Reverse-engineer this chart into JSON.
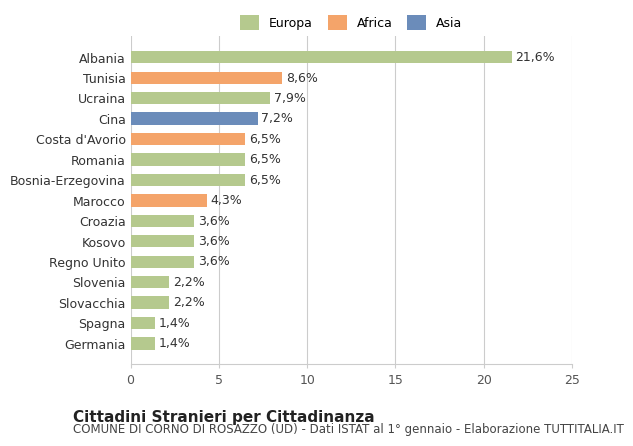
{
  "categories": [
    "Albania",
    "Tunisia",
    "Ucraina",
    "Cina",
    "Costa d'Avorio",
    "Romania",
    "Bosnia-Erzegovina",
    "Marocco",
    "Croazia",
    "Kosovo",
    "Regno Unito",
    "Slovenia",
    "Slovacchia",
    "Spagna",
    "Germania"
  ],
  "values": [
    21.6,
    8.6,
    7.9,
    7.2,
    6.5,
    6.5,
    6.5,
    4.3,
    3.6,
    3.6,
    3.6,
    2.2,
    2.2,
    1.4,
    1.4
  ],
  "labels": [
    "21,6%",
    "8,6%",
    "7,9%",
    "7,2%",
    "6,5%",
    "6,5%",
    "6,5%",
    "4,3%",
    "3,6%",
    "3,6%",
    "3,6%",
    "2,2%",
    "2,2%",
    "1,4%",
    "1,4%"
  ],
  "continents": [
    "Europa",
    "Africa",
    "Europa",
    "Asia",
    "Africa",
    "Europa",
    "Europa",
    "Africa",
    "Europa",
    "Europa",
    "Europa",
    "Europa",
    "Europa",
    "Europa",
    "Europa"
  ],
  "colors": {
    "Europa": "#b5c98e",
    "Africa": "#f4a46a",
    "Asia": "#6b8cba"
  },
  "legend_colors": {
    "Europa": "#b5c98e",
    "Africa": "#f4a46a",
    "Asia": "#6b8cba"
  },
  "xlim": [
    0,
    25
  ],
  "xticks": [
    0,
    5,
    10,
    15,
    20,
    25
  ],
  "title": "Cittadini Stranieri per Cittadinanza",
  "subtitle": "COMUNE DI CORNO DI ROSAZZO (UD) - Dati ISTAT al 1° gennaio - Elaborazione TUTTITALIA.IT",
  "background_color": "#ffffff",
  "grid_color": "#cccccc",
  "bar_height": 0.6,
  "label_fontsize": 9,
  "tick_fontsize": 9,
  "title_fontsize": 11,
  "subtitle_fontsize": 8.5
}
